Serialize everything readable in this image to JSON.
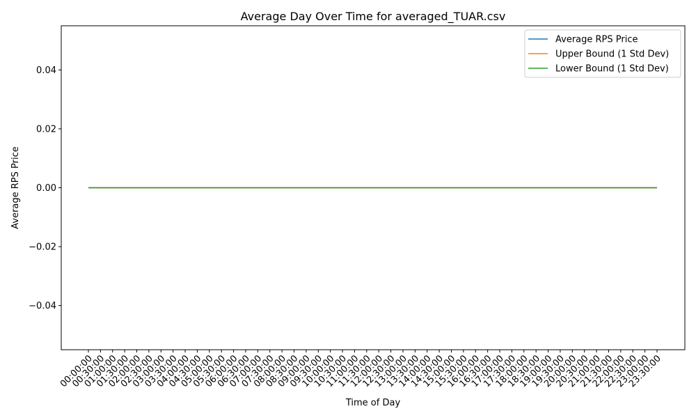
{
  "chart_data": {
    "type": "line",
    "title": "Average Day Over Time for averaged_TUAR.csv",
    "xlabel": "Time of Day",
    "ylabel": "Average RPS Price",
    "x": [
      "00:00:00",
      "00:30:00",
      "01:00:00",
      "01:30:00",
      "02:00:00",
      "02:30:00",
      "03:00:00",
      "03:30:00",
      "04:00:00",
      "04:30:00",
      "05:00:00",
      "05:30:00",
      "06:00:00",
      "06:30:00",
      "07:00:00",
      "07:30:00",
      "08:00:00",
      "08:30:00",
      "09:00:00",
      "09:30:00",
      "10:00:00",
      "10:30:00",
      "11:00:00",
      "11:30:00",
      "12:00:00",
      "12:30:00",
      "13:00:00",
      "13:30:00",
      "14:00:00",
      "14:30:00",
      "15:00:00",
      "15:30:00",
      "16:00:00",
      "16:30:00",
      "17:00:00",
      "17:30:00",
      "18:00:00",
      "18:30:00",
      "19:00:00",
      "19:30:00",
      "20:00:00",
      "20:30:00",
      "21:00:00",
      "21:30:00",
      "22:00:00",
      "22:30:00",
      "23:00:00",
      "23:30:00"
    ],
    "ylim": [
      -0.055,
      0.055
    ],
    "yticks": [
      -0.04,
      -0.02,
      0.0,
      0.02,
      0.04
    ],
    "ytick_labels": [
      "−0.04",
      "−0.02",
      "0.00",
      "0.02",
      "0.04"
    ],
    "grid": false,
    "legend_position": "top-right",
    "series": [
      {
        "name": "Average RPS Price",
        "color": "#1f77b4",
        "values": [
          0,
          0,
          0,
          0,
          0,
          0,
          0,
          0,
          0,
          0,
          0,
          0,
          0,
          0,
          0,
          0,
          0,
          0,
          0,
          0,
          0,
          0,
          0,
          0,
          0,
          0,
          0,
          0,
          0,
          0,
          0,
          0,
          0,
          0,
          0,
          0,
          0,
          0,
          0,
          0,
          0,
          0,
          0,
          0,
          0,
          0,
          0,
          0
        ]
      },
      {
        "name": "Upper Bound (1 Std Dev)",
        "color": "#ff7f0e",
        "values": [
          0,
          0,
          0,
          0,
          0,
          0,
          0,
          0,
          0,
          0,
          0,
          0,
          0,
          0,
          0,
          0,
          0,
          0,
          0,
          0,
          0,
          0,
          0,
          0,
          0,
          0,
          0,
          0,
          0,
          0,
          0,
          0,
          0,
          0,
          0,
          0,
          0,
          0,
          0,
          0,
          0,
          0,
          0,
          0,
          0,
          0,
          0,
          0
        ]
      },
      {
        "name": "Lower Bound (1 Std Dev)",
        "color": "#2ca02c",
        "values": [
          0,
          0,
          0,
          0,
          0,
          0,
          0,
          0,
          0,
          0,
          0,
          0,
          0,
          0,
          0,
          0,
          0,
          0,
          0,
          0,
          0,
          0,
          0,
          0,
          0,
          0,
          0,
          0,
          0,
          0,
          0,
          0,
          0,
          0,
          0,
          0,
          0,
          0,
          0,
          0,
          0,
          0,
          0,
          0,
          0,
          0,
          0,
          0
        ]
      }
    ]
  }
}
